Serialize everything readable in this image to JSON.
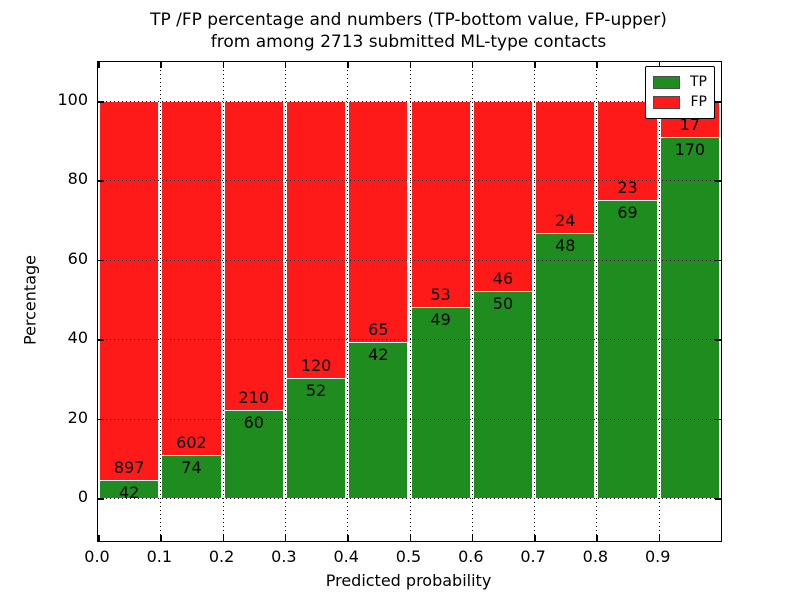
{
  "figure": {
    "title_line1": "TP /FP percentage and numbers (TP-bottom value, FP-upper)",
    "title_line2": "from among 2713 submitted ML-type contacts"
  },
  "chart_data": {
    "type": "bar",
    "stacked": true,
    "title": "TP /FP percentage and numbers (TP-bottom value, FP-upper) from among 2713 submitted ML-type contacts",
    "xlabel": "Predicted probability",
    "ylabel": "Percentage",
    "total_contacts": 2713,
    "categories": [
      "0.0",
      "0.1",
      "0.2",
      "0.3",
      "0.4",
      "0.5",
      "0.6",
      "0.7",
      "0.8",
      "0.9"
    ],
    "bin_width": 0.1,
    "xlim": [
      0.0,
      1.0
    ],
    "ylim": [
      -11,
      110
    ],
    "yticks": [
      0,
      20,
      40,
      60,
      80,
      100
    ],
    "xticks": [
      0.0,
      0.1,
      0.2,
      0.3,
      0.4,
      0.5,
      0.6,
      0.7,
      0.8,
      0.9
    ],
    "grid": "dotted",
    "units": "percent of bin stacked to 100",
    "series": [
      {
        "name": "TP",
        "color": "#1e8c1e",
        "counts": [
          42,
          74,
          60,
          52,
          42,
          49,
          50,
          48,
          69,
          170
        ]
      },
      {
        "name": "FP",
        "color": "#ff1a1a",
        "counts": [
          897,
          602,
          210,
          120,
          65,
          53,
          46,
          24,
          23,
          17
        ]
      }
    ],
    "tp_percent": [
      4.5,
      10.9,
      22.2,
      30.2,
      39.3,
      48.0,
      52.1,
      66.7,
      75.0,
      90.9
    ],
    "legend": {
      "position": "upper right",
      "entries": [
        {
          "label": "TP",
          "color": "#1e8c1e"
        },
        {
          "label": "FP",
          "color": "#ff1a1a"
        }
      ]
    }
  }
}
